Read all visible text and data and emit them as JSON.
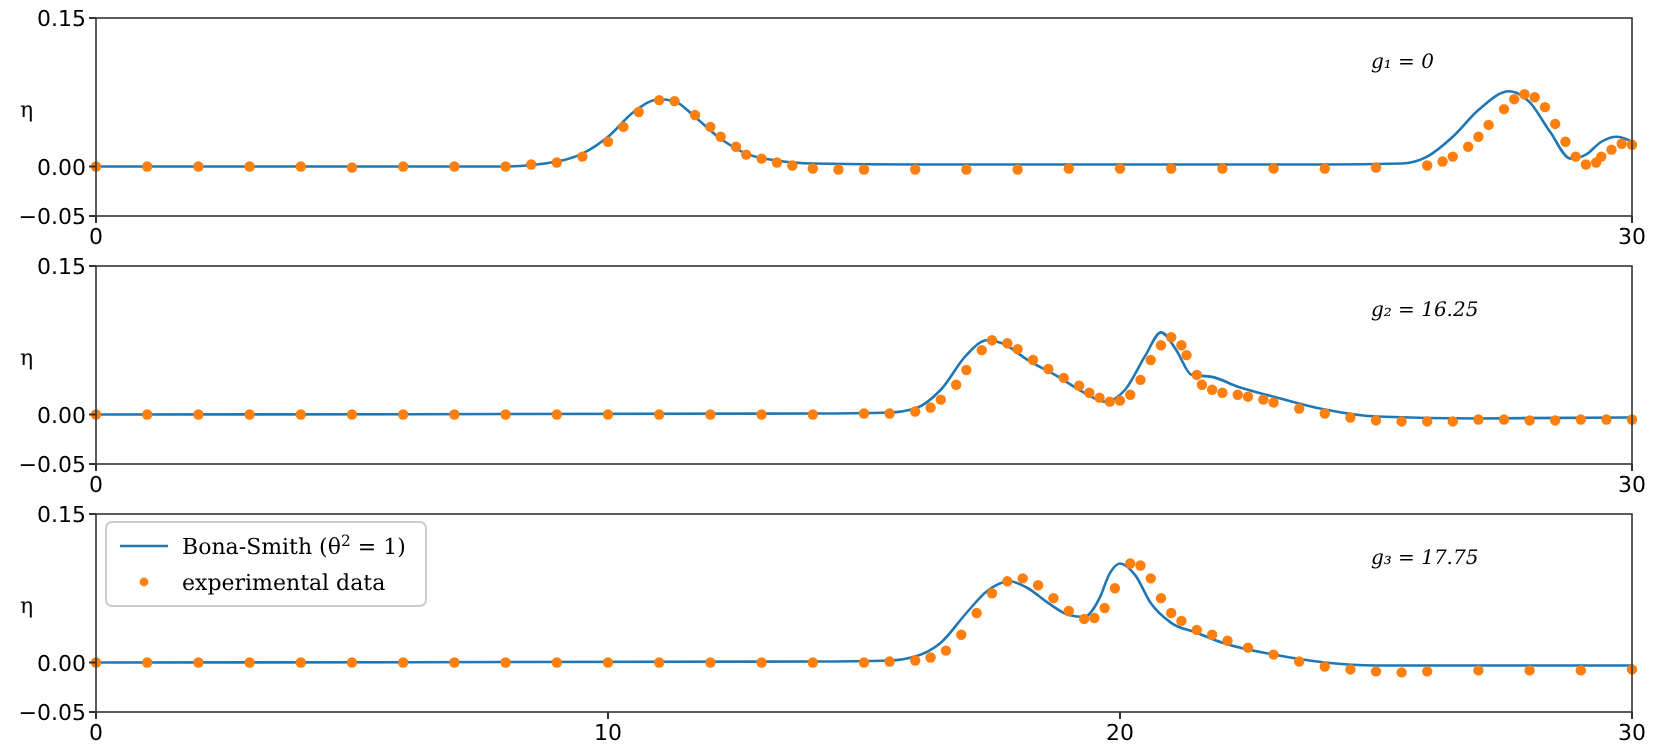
{
  "chart_data": [
    {
      "type": "line",
      "ylabel": "η",
      "annotations": [
        "g₁ = 0"
      ],
      "xlim": [
        0,
        30
      ],
      "ylim": [
        -0.05,
        0.15
      ],
      "xticks": [
        0,
        30
      ],
      "yticks": [
        {
          "value": -0.05,
          "label": "−0.05"
        },
        {
          "value": 0,
          "label": "0.00"
        },
        {
          "value": 0.15,
          "label": "0.15"
        }
      ],
      "legend": false,
      "series": [
        {
          "type": "line",
          "color": "#1f77b4",
          "x": [
            0,
            5,
            8,
            9,
            9.5,
            10,
            10.5,
            11,
            11.3,
            11.7,
            12.2,
            12.7,
            13.3,
            14,
            16,
            20,
            24,
            25.5,
            26,
            26.5,
            27,
            27.6,
            28,
            28.4,
            28.8,
            29.1,
            29.4,
            29.7,
            30
          ],
          "values": [
            0,
            0,
            0,
            0.005,
            0.013,
            0.03,
            0.055,
            0.068,
            0.066,
            0.05,
            0.028,
            0.013,
            0.006,
            0.003,
            0.002,
            0.002,
            0.002,
            0.003,
            0.01,
            0.03,
            0.057,
            0.076,
            0.065,
            0.035,
            0.008,
            0.012,
            0.025,
            0.03,
            0.025
          ]
        },
        {
          "type": "scatter",
          "color": "#ff7f0e",
          "x": [
            0,
            1,
            2,
            3,
            4,
            5,
            6,
            7,
            8,
            8.5,
            9,
            9.5,
            10,
            10.3,
            10.6,
            11,
            11.3,
            11.7,
            12,
            12.2,
            12.5,
            12.7,
            13,
            13.3,
            13.6,
            14,
            14.5,
            15,
            16,
            17,
            18,
            19,
            20,
            21,
            22,
            23,
            24,
            25,
            26,
            26.3,
            26.5,
            26.8,
            27,
            27.2,
            27.5,
            27.7,
            27.9,
            28.1,
            28.3,
            28.5,
            28.7,
            28.9,
            29.1,
            29.3,
            29.4,
            29.6,
            29.8,
            30
          ],
          "values": [
            0,
            0,
            0,
            0,
            0,
            -0.001,
            0,
            0,
            0,
            0.002,
            0.004,
            0.01,
            0.025,
            0.04,
            0.055,
            0.067,
            0.066,
            0.052,
            0.04,
            0.03,
            0.02,
            0.012,
            0.008,
            0.004,
            0.001,
            -0.002,
            -0.003,
            -0.003,
            -0.003,
            -0.003,
            -0.003,
            -0.002,
            -0.002,
            -0.002,
            -0.002,
            -0.002,
            -0.002,
            -0.001,
            0.001,
            0.005,
            0.01,
            0.02,
            0.03,
            0.042,
            0.058,
            0.068,
            0.073,
            0.07,
            0.06,
            0.043,
            0.025,
            0.01,
            0.002,
            0.004,
            0.01,
            0.017,
            0.023,
            0.022
          ]
        }
      ]
    },
    {
      "type": "line",
      "ylabel": "η",
      "annotations": [
        "g₂ = 16.25"
      ],
      "xlim": [
        0,
        30
      ],
      "ylim": [
        -0.05,
        0.15
      ],
      "xticks": [
        0,
        30
      ],
      "yticks": [
        {
          "value": -0.05,
          "label": "−0.05"
        },
        {
          "value": 0,
          "label": "0.00"
        },
        {
          "value": 0.15,
          "label": "0.15"
        }
      ],
      "legend": false,
      "series": [
        {
          "type": "line",
          "color": "#1f77b4",
          "x": [
            0,
            14,
            15.5,
            16,
            16.5,
            17,
            17.4,
            17.7,
            18.2,
            18.8,
            19.3,
            19.7,
            20.1,
            20.5,
            20.8,
            21.1,
            21.4,
            21.8,
            22.3,
            23,
            24,
            25,
            27,
            30
          ],
          "values": [
            0,
            0.001,
            0.002,
            0.006,
            0.025,
            0.06,
            0.075,
            0.072,
            0.055,
            0.038,
            0.022,
            0.013,
            0.025,
            0.06,
            0.083,
            0.065,
            0.04,
            0.038,
            0.028,
            0.018,
            0.005,
            -0.002,
            -0.004,
            -0.003
          ]
        },
        {
          "type": "scatter",
          "color": "#ff7f0e",
          "x": [
            0,
            1,
            2,
            3,
            4,
            5,
            6,
            7,
            8,
            9,
            10,
            11,
            12,
            13,
            14,
            15,
            15.5,
            16,
            16.3,
            16.5,
            16.8,
            17,
            17.3,
            17.5,
            17.8,
            18,
            18.3,
            18.6,
            18.9,
            19.2,
            19.4,
            19.6,
            19.8,
            20,
            20.2,
            20.4,
            20.6,
            20.8,
            21,
            21.2,
            21.3,
            21.5,
            21.6,
            21.8,
            22,
            22.3,
            22.5,
            22.8,
            23,
            23.5,
            24,
            24.5,
            25,
            25.5,
            26,
            26.5,
            27,
            27.5,
            28,
            28.5,
            29,
            29.5,
            30
          ],
          "values": [
            0,
            0,
            0,
            0,
            0,
            0,
            0,
            0,
            0,
            0,
            0,
            0,
            0,
            0,
            0,
            0.001,
            0.001,
            0.003,
            0.007,
            0.015,
            0.03,
            0.045,
            0.065,
            0.075,
            0.072,
            0.066,
            0.055,
            0.046,
            0.037,
            0.029,
            0.022,
            0.017,
            0.013,
            0.014,
            0.02,
            0.035,
            0.055,
            0.07,
            0.078,
            0.07,
            0.06,
            0.04,
            0.03,
            0.025,
            0.022,
            0.02,
            0.018,
            0.015,
            0.012,
            0.006,
            0.001,
            -0.003,
            -0.006,
            -0.007,
            -0.007,
            -0.007,
            -0.005,
            -0.005,
            -0.006,
            -0.006,
            -0.005,
            -0.005,
            -0.005
          ]
        }
      ]
    },
    {
      "type": "line",
      "ylabel": "η",
      "annotations": [
        "g₃ = 17.75"
      ],
      "xlim": [
        0,
        30
      ],
      "ylim": [
        -0.05,
        0.15
      ],
      "xticks": [
        0,
        10,
        20,
        30
      ],
      "yticks": [
        {
          "value": -0.05,
          "label": "−0.05"
        },
        {
          "value": 0,
          "label": "0.00"
        },
        {
          "value": 0.15,
          "label": "0.15"
        }
      ],
      "legend": "top left",
      "series": [
        {
          "type": "line",
          "name": "Bona-Smith (θ$^{2}$ = 1)",
          "color": "#1f77b4",
          "x": [
            0,
            14,
            15.5,
            16,
            16.5,
            17,
            17.4,
            17.85,
            18.2,
            18.6,
            19,
            19.3,
            19.6,
            19.8,
            20,
            20.3,
            20.6,
            21,
            21.5,
            22,
            23,
            24,
            25,
            27,
            30
          ],
          "values": [
            0,
            0.001,
            0.002,
            0.006,
            0.02,
            0.05,
            0.072,
            0.082,
            0.075,
            0.06,
            0.048,
            0.046,
            0.065,
            0.09,
            0.1,
            0.088,
            0.06,
            0.04,
            0.03,
            0.02,
            0.008,
            0,
            -0.003,
            -0.003,
            -0.003
          ]
        },
        {
          "type": "scatter",
          "name": "experimental data",
          "color": "#ff7f0e",
          "x": [
            0,
            1,
            2,
            3,
            4,
            5,
            6,
            7,
            8,
            9,
            10,
            11,
            12,
            13,
            14,
            15,
            15.5,
            16,
            16.3,
            16.6,
            16.9,
            17.2,
            17.5,
            17.8,
            18.1,
            18.4,
            18.7,
            19,
            19.3,
            19.5,
            19.7,
            19.9,
            20.2,
            20.4,
            20.6,
            20.8,
            21,
            21.2,
            21.5,
            21.8,
            22.1,
            22.5,
            23,
            23.5,
            24,
            24.5,
            25,
            25.5,
            26,
            27,
            28,
            29,
            30
          ],
          "values": [
            0,
            0,
            0,
            0,
            0,
            0,
            0,
            0,
            0,
            0,
            0,
            0,
            0,
            0,
            0,
            0,
            0.001,
            0.002,
            0.005,
            0.012,
            0.028,
            0.05,
            0.07,
            0.082,
            0.085,
            0.078,
            0.065,
            0.052,
            0.044,
            0.045,
            0.055,
            0.075,
            0.1,
            0.098,
            0.085,
            0.065,
            0.05,
            0.042,
            0.033,
            0.028,
            0.022,
            0.015,
            0.008,
            0.001,
            -0.004,
            -0.007,
            -0.009,
            -0.01,
            -0.009,
            -0.008,
            -0.008,
            -0.008,
            -0.007
          ]
        }
      ]
    }
  ]
}
